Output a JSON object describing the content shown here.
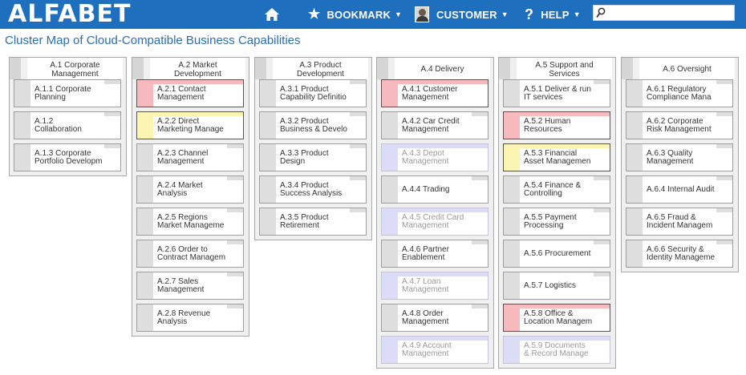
{
  "header": {
    "logo": "ALFABET",
    "bookmark_label": "BOOKMARK",
    "customer_label": "CUSTOMER",
    "help_label": "HELP",
    "search": {
      "value": "",
      "placeholder": ""
    },
    "bar_color": "#1f6fbf"
  },
  "page_title": "Cluster Map of Cloud-Compatible Business Capabilities",
  "status_colors": {
    "red": "#f6b9bd",
    "yellow": "#fbf4b3",
    "blue": "#dcdcf6"
  },
  "clusters": [
    {
      "title": "A.1 Corporate\nManagement",
      "items": [
        {
          "label": "A.1.1 Corporate\nPlanning",
          "status": "none"
        },
        {
          "label": "A.1.2\nCollaboration",
          "status": "none"
        },
        {
          "label": "A.1.3 Corporate\nPortfolio Developm",
          "status": "none"
        }
      ]
    },
    {
      "title": "A.2 Market\nDevelopment",
      "items": [
        {
          "label": "A.2.1 Contact\nManagement",
          "status": "red"
        },
        {
          "label": "A.2.2 Direct\nMarketing Manage",
          "status": "yellow"
        },
        {
          "label": "A.2.3 Channel\nManagement",
          "status": "none"
        },
        {
          "label": "A.2.4 Market\nAnalysis",
          "status": "none"
        },
        {
          "label": "A.2.5 Regions\nMarket Manageme",
          "status": "none"
        },
        {
          "label": "A.2.6 Order to\nContract Managem",
          "status": "none"
        },
        {
          "label": "A.2.7 Sales\nManagement",
          "status": "none"
        },
        {
          "label": "A.2.8 Revenue\nAnalysis",
          "status": "none"
        }
      ]
    },
    {
      "title": "A.3 Product\nDevelopment",
      "items": [
        {
          "label": "A.3.1 Product\nCapability Definitio",
          "status": "none"
        },
        {
          "label": "A.3.2 Product\nBusiness & Develo",
          "status": "none"
        },
        {
          "label": "A.3.3 Product\nDesign",
          "status": "none"
        },
        {
          "label": "A.3.4 Product\nSuccess Analysis",
          "status": "none"
        },
        {
          "label": "A.3.5 Product\nRetirement",
          "status": "none"
        }
      ]
    },
    {
      "title": "A.4 Delivery",
      "items": [
        {
          "label": "A.4.1 Customer\nManagement",
          "status": "red"
        },
        {
          "label": "A.4.2 Car Credit\nManagement",
          "status": "none"
        },
        {
          "label": "A.4.3 Depot\nManagement",
          "status": "blue"
        },
        {
          "label": "A.4.4 Trading",
          "status": "none"
        },
        {
          "label": "A.4.5 Credit Card\nManagement",
          "status": "blue"
        },
        {
          "label": "A.4.6 Partner\nEnablement",
          "status": "none"
        },
        {
          "label": "A.4.7 Loan\nManagement",
          "status": "blue"
        },
        {
          "label": "A.4.8 Order\nManagement",
          "status": "none"
        },
        {
          "label": "A.4.9 Account\nManagement",
          "status": "blue"
        }
      ]
    },
    {
      "title": "A.5 Support and\nServices",
      "items": [
        {
          "label": "A.5.1 Deliver & run\nIT services",
          "status": "none"
        },
        {
          "label": "A.5.2 Human\nResources",
          "status": "red"
        },
        {
          "label": "A.5.3 Financial\nAsset Managemen",
          "status": "yellow"
        },
        {
          "label": "A.5.4 Finance &\nControlling",
          "status": "none"
        },
        {
          "label": "A.5.5 Payment\nProcessing",
          "status": "none"
        },
        {
          "label": "A.5.6 Procurement",
          "status": "none"
        },
        {
          "label": "A.5.7 Logistics",
          "status": "none"
        },
        {
          "label": "A.5.8 Office &\nLocation Managem",
          "status": "red"
        },
        {
          "label": "A.5.9 Documents\n& Record Manage",
          "status": "blue"
        }
      ]
    },
    {
      "title": "A.6 Oversight",
      "items": [
        {
          "label": "A.6.1 Regulatory\nCompliance Mana",
          "status": "none"
        },
        {
          "label": "A.6.2 Corporate\nRisk Management",
          "status": "none"
        },
        {
          "label": "A.6.3 Quality\nManagement",
          "status": "none"
        },
        {
          "label": "A.6.4 Internal Audit",
          "status": "none"
        },
        {
          "label": "A.6.5 Fraud &\nIncident Managem",
          "status": "none"
        },
        {
          "label": "A.6.6 Security &\nIdentity Manageme",
          "status": "none"
        }
      ]
    }
  ]
}
